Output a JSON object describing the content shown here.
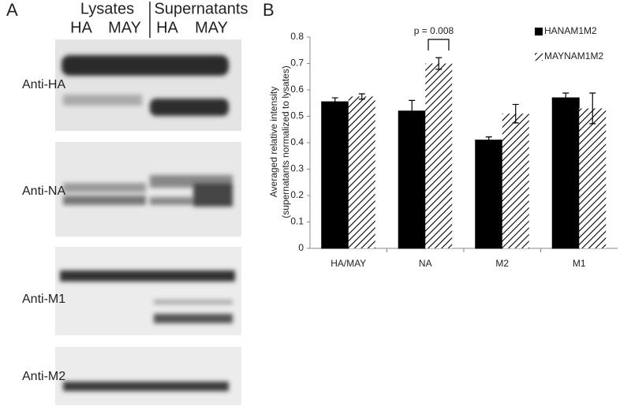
{
  "panel_a": {
    "label": "A",
    "group_labels": [
      "Lysates",
      "Supernatants"
    ],
    "lane_labels": [
      "HA",
      "MAY",
      "HA",
      "MAY"
    ],
    "blot_labels": [
      "Anti-HA",
      "Anti-NA",
      "Anti-M1",
      "Anti-M2"
    ]
  },
  "chart_data": {
    "type": "bar",
    "panel_label": "B",
    "y_label": [
      "Averaged relative intensity",
      "(supernatants normalized to lysates)"
    ],
    "categories": [
      "HA/MAY",
      "NA",
      "M2",
      "M1"
    ],
    "series": [
      {
        "name": "HANAM1M2",
        "color": "#000000",
        "hatch": false,
        "values": [
          0.555,
          0.52,
          0.41,
          0.57
        ],
        "errors": [
          0.015,
          0.04,
          0.012,
          0.018
        ]
      },
      {
        "name": "MAYNAM1M2",
        "color": "#000000",
        "hatch": true,
        "values": [
          0.575,
          0.7,
          0.51,
          0.53
        ],
        "errors": [
          0.01,
          0.022,
          0.035,
          0.058
        ]
      }
    ],
    "annotation": "p = 0.008",
    "ylim": [
      0,
      0.8
    ],
    "yticks": [
      0,
      0.1,
      0.2,
      0.3,
      0.4,
      0.5,
      0.6,
      0.7,
      0.8
    ],
    "grid": false,
    "legend": "top-right"
  }
}
